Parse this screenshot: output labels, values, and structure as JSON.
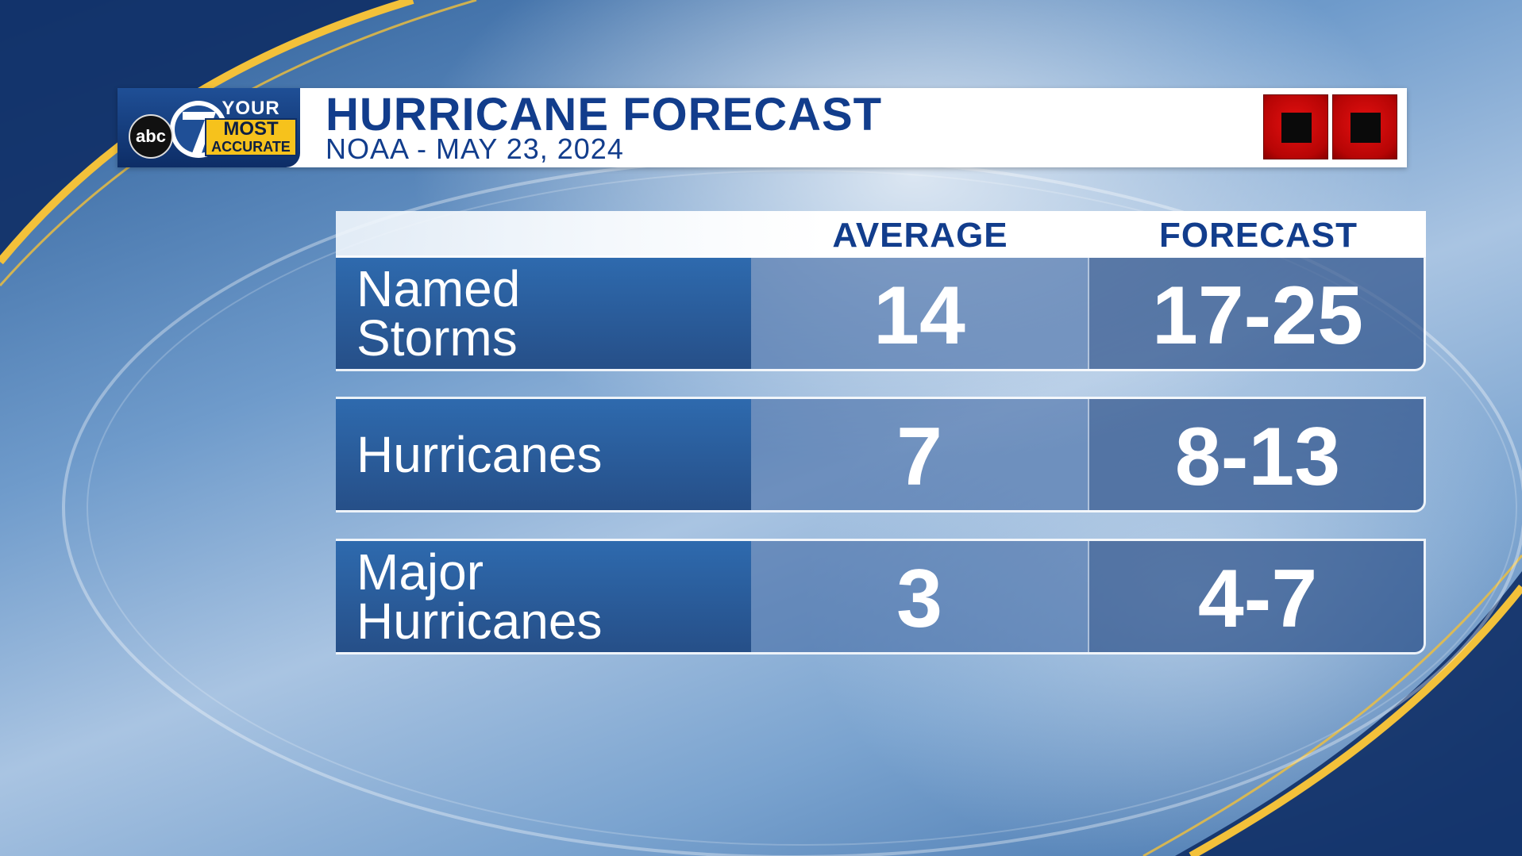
{
  "colors": {
    "title_blue": "#123d8c",
    "label_blue": "#2e6aae",
    "logo_yellow": "#f6c21c",
    "badge_red": "#d00a0a"
  },
  "header": {
    "logo": {
      "network": "abc",
      "channel": "7",
      "tag_top": "YOUR",
      "tag_mid": "MOST",
      "tag_bottom": "ACCURATE"
    },
    "title": "HURRICANE FORECAST",
    "subtitle": "NOAA - MAY 23, 2024",
    "badge_icons": [
      "red-square-icon",
      "red-square-icon"
    ]
  },
  "table": {
    "columns": [
      "",
      "AVERAGE",
      "FORECAST"
    ],
    "rows": [
      {
        "label_line1": "Named",
        "label_line2": "Storms",
        "average": "14",
        "forecast": "17-25"
      },
      {
        "label_line1": "Hurricanes",
        "label_line2": "",
        "average": "7",
        "forecast": "8-13"
      },
      {
        "label_line1": "Major",
        "label_line2": "Hurricanes",
        "average": "3",
        "forecast": "4-7"
      }
    ]
  }
}
